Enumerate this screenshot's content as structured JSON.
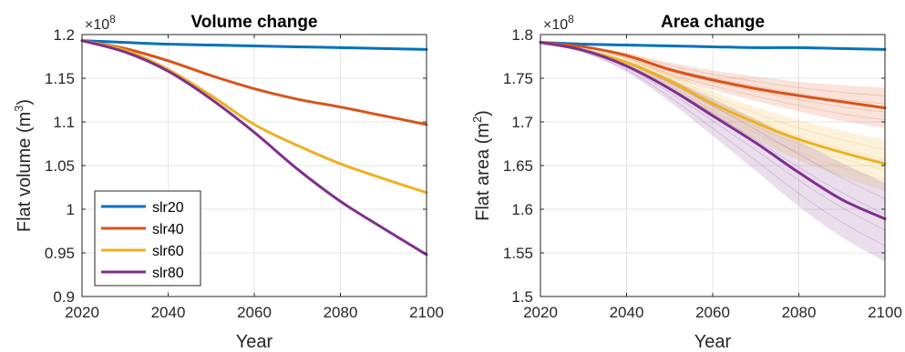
{
  "colors": {
    "slr20": "#0072BD",
    "slr40": "#D95319",
    "slr60": "#EDB120",
    "slr80": "#7E2F8E",
    "grid": "#e6e6e6",
    "axis": "#262626"
  },
  "chart_data": [
    {
      "type": "line",
      "title": "Volume change",
      "xlabel": "Year",
      "ylabel_text": "Flat volume (m",
      "ylabel_sup": "3",
      "ylabel_close": ")",
      "exponent_text": "×10",
      "exponent_sup": "8",
      "xlim": [
        2020,
        2100
      ],
      "ylim": [
        0.9,
        1.2
      ],
      "xticks": [
        2020,
        2040,
        2060,
        2080,
        2100
      ],
      "xtick_labels": [
        "2020",
        "2040",
        "2060",
        "2080",
        "2100"
      ],
      "yticks": [
        0.9,
        0.95,
        1.0,
        1.05,
        1.1,
        1.15,
        1.2
      ],
      "ytick_labels": [
        "0.9",
        "0.95",
        "1",
        "1.05",
        "1.1",
        "1.15",
        "1.2"
      ],
      "grid": true,
      "legend_position": "bottom-left",
      "x": [
        2020,
        2030,
        2040,
        2050,
        2060,
        2070,
        2080,
        2090,
        2100
      ],
      "series": [
        {
          "name": "slr20",
          "values": [
            1.193,
            1.191,
            1.189,
            1.188,
            1.187,
            1.186,
            1.185,
            1.184,
            1.183
          ]
        },
        {
          "name": "slr40",
          "values": [
            1.193,
            1.184,
            1.17,
            1.153,
            1.138,
            1.126,
            1.117,
            1.107,
            1.097
          ]
        },
        {
          "name": "slr60",
          "values": [
            1.193,
            1.182,
            1.16,
            1.13,
            1.097,
            1.073,
            1.052,
            1.035,
            1.019
          ]
        },
        {
          "name": "slr80",
          "values": [
            1.193,
            1.18,
            1.158,
            1.126,
            1.088,
            1.046,
            1.009,
            0.978,
            0.948
          ]
        }
      ]
    },
    {
      "type": "line",
      "title": "Area change",
      "xlabel": "Year",
      "ylabel_text": "Flat area (m",
      "ylabel_sup": "2",
      "ylabel_close": ")",
      "exponent_text": "×10",
      "exponent_sup": "8",
      "xlim": [
        2020,
        2100
      ],
      "ylim": [
        1.5,
        1.8
      ],
      "xticks": [
        2020,
        2040,
        2060,
        2080,
        2100
      ],
      "xtick_labels": [
        "2020",
        "2040",
        "2060",
        "2080",
        "2100"
      ],
      "yticks": [
        1.5,
        1.55,
        1.6,
        1.65,
        1.7,
        1.75,
        1.8
      ],
      "ytick_labels": [
        "1.5",
        "1.55",
        "1.6",
        "1.65",
        "1.7",
        "1.75",
        "1.8"
      ],
      "grid": true,
      "x": [
        2020,
        2030,
        2040,
        2050,
        2060,
        2070,
        2080,
        2090,
        2100
      ],
      "series": [
        {
          "name": "slr20",
          "values": [
            1.791,
            1.789,
            1.788,
            1.787,
            1.786,
            1.785,
            1.785,
            1.784,
            1.783
          ]
        },
        {
          "name": "slr40",
          "values": [
            1.791,
            1.786,
            1.776,
            1.76,
            1.748,
            1.738,
            1.73,
            1.723,
            1.716
          ],
          "band_lower": [
            1.791,
            1.785,
            1.772,
            1.752,
            1.737,
            1.724,
            1.712,
            1.701,
            1.693
          ],
          "band_upper": [
            1.791,
            1.787,
            1.779,
            1.768,
            1.759,
            1.752,
            1.746,
            1.742,
            1.739
          ]
        },
        {
          "name": "slr60",
          "values": [
            1.791,
            1.782,
            1.768,
            1.747,
            1.721,
            1.699,
            1.68,
            1.665,
            1.652
          ],
          "band_lower": [
            1.791,
            1.78,
            1.763,
            1.738,
            1.707,
            1.68,
            1.656,
            1.637,
            1.621
          ],
          "band_upper": [
            1.791,
            1.784,
            1.773,
            1.756,
            1.735,
            1.717,
            1.702,
            1.69,
            1.68
          ]
        },
        {
          "name": "slr80",
          "values": [
            1.791,
            1.782,
            1.764,
            1.738,
            1.707,
            1.676,
            1.642,
            1.611,
            1.589
          ],
          "band_lower": [
            1.791,
            1.779,
            1.757,
            1.723,
            1.684,
            1.644,
            1.603,
            1.568,
            1.54
          ],
          "band_upper": [
            1.791,
            1.784,
            1.77,
            1.75,
            1.727,
            1.703,
            1.678,
            1.653,
            1.63
          ]
        }
      ]
    }
  ]
}
